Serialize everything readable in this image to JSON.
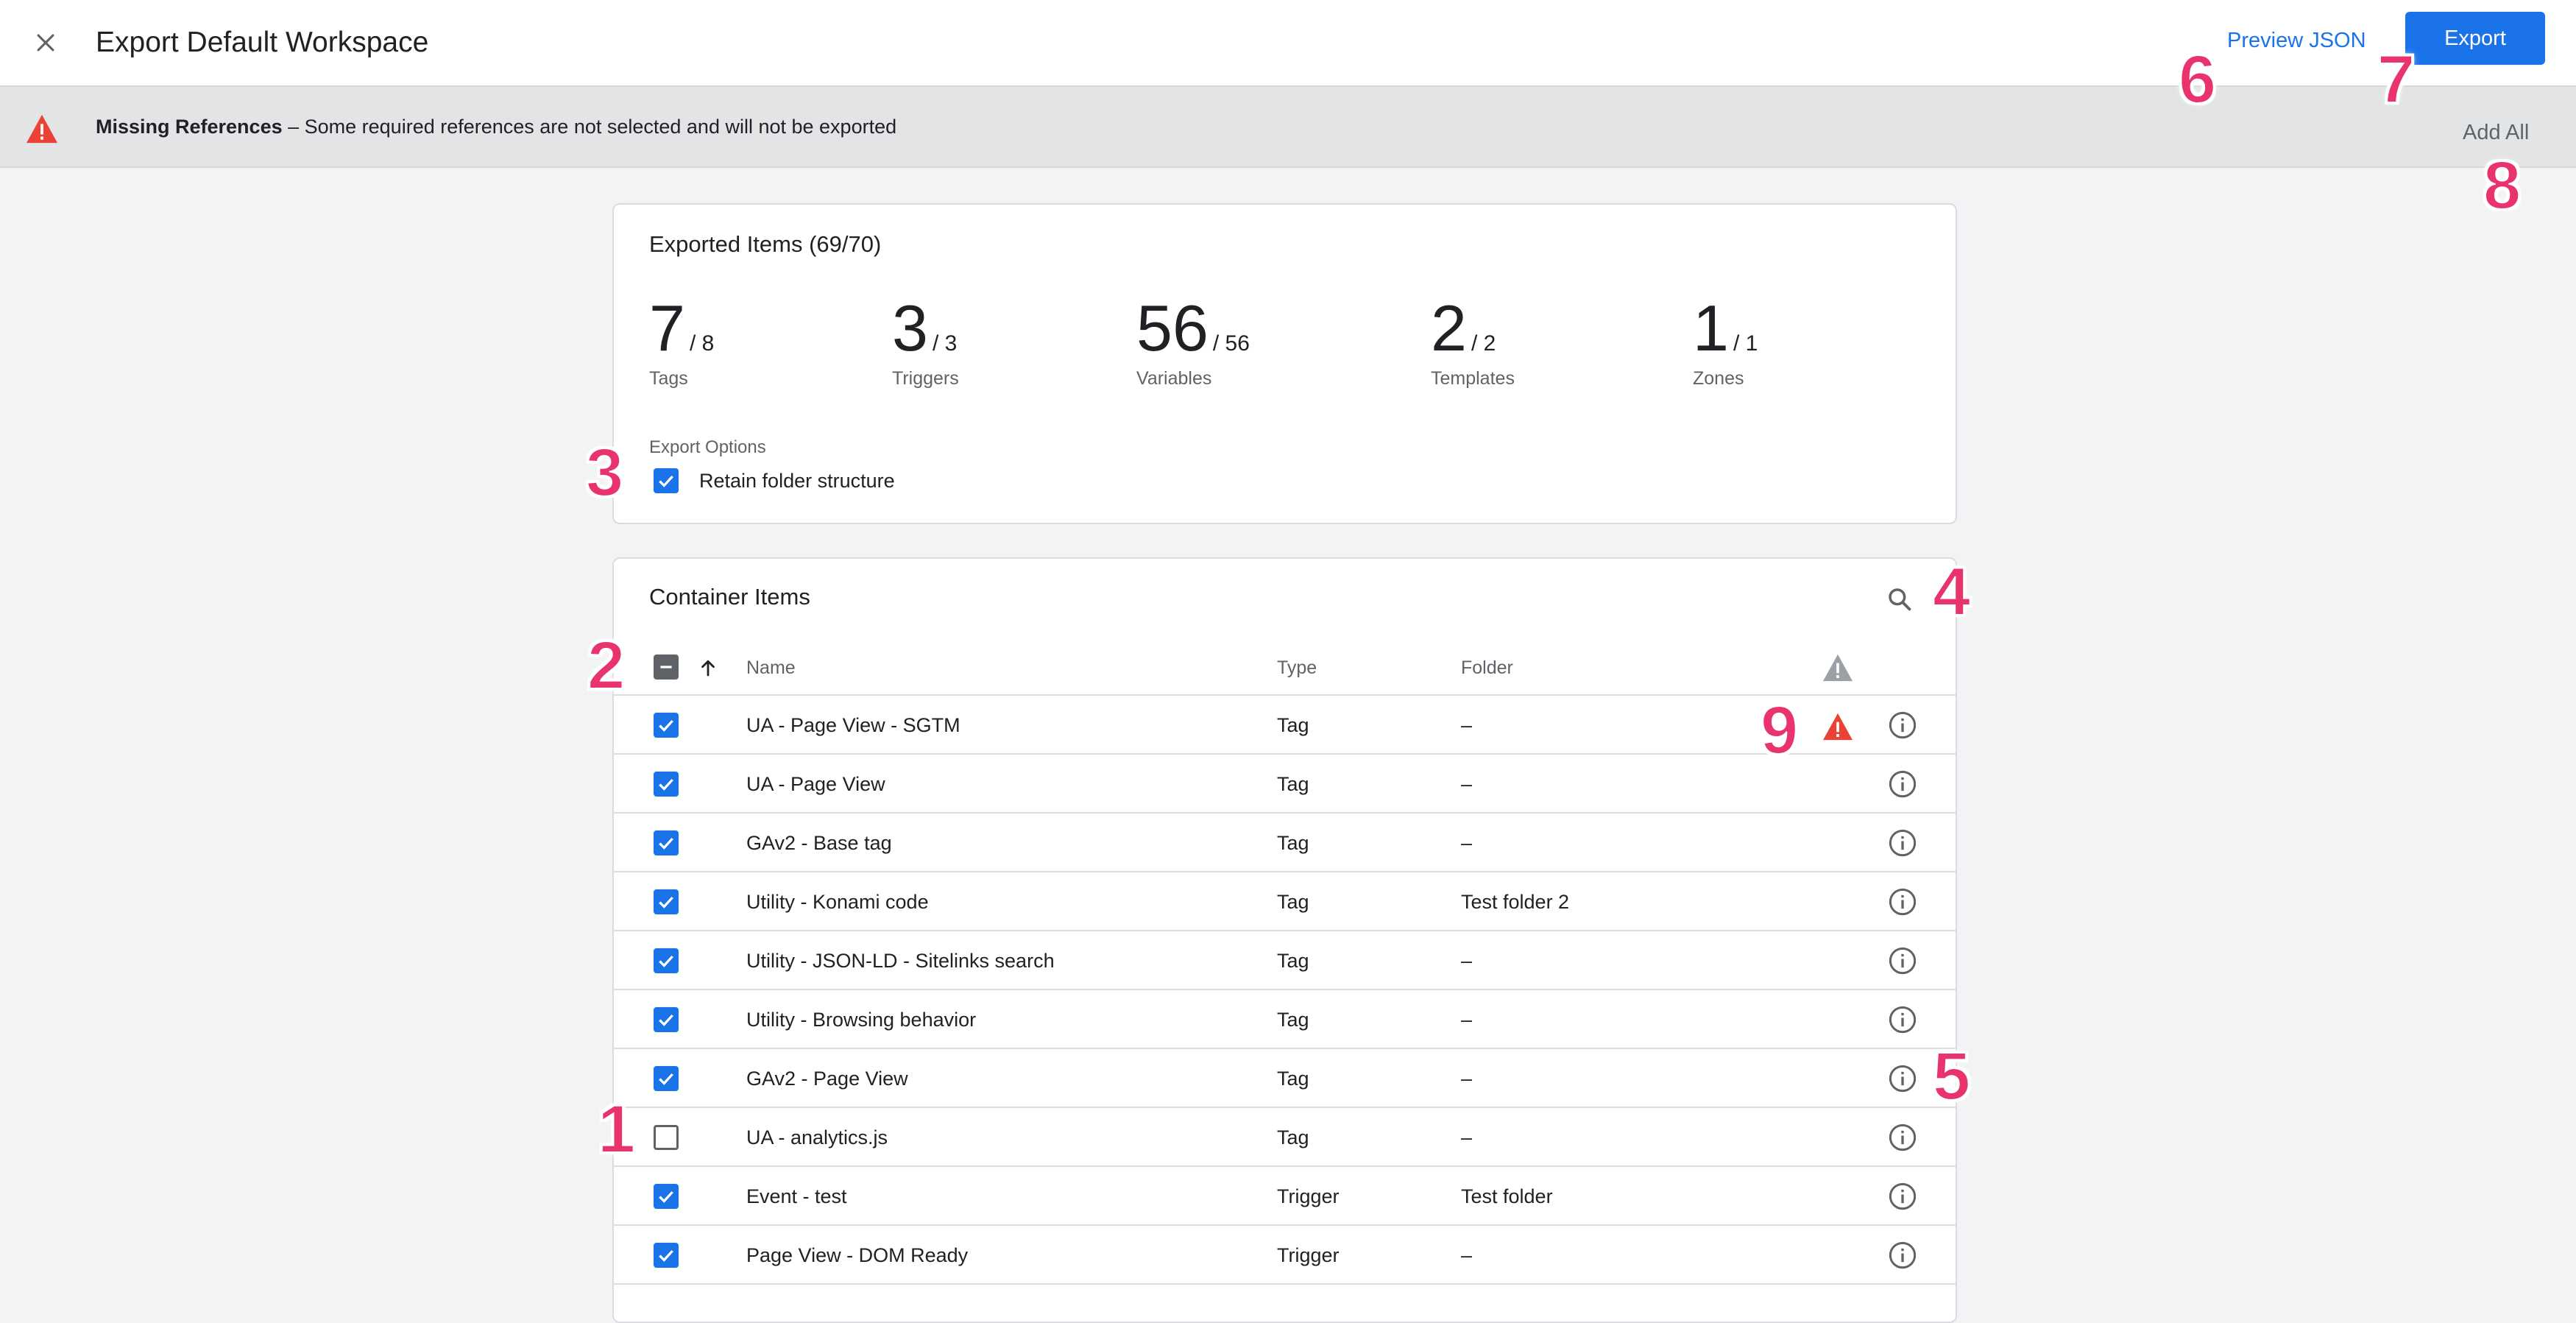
{
  "header": {
    "title": "Export Default Workspace",
    "close_icon": "close-icon",
    "preview_json_label": "Preview JSON",
    "export_label": "Export",
    "accent_color": "#1a73e8"
  },
  "banner": {
    "icon": "warning-icon",
    "heading": "Missing References",
    "message": " – Some required references are not selected and will not be exported",
    "add_all_label": "Add All",
    "warning_color": "#ea4335"
  },
  "summary": {
    "title": "Exported Items (69/70)",
    "stats": [
      {
        "count": "7",
        "total": "/ 8",
        "label": "Tags"
      },
      {
        "count": "3",
        "total": "/ 3",
        "label": "Triggers"
      },
      {
        "count": "56",
        "total": "/ 56",
        "label": "Variables"
      },
      {
        "count": "2",
        "total": "/ 2",
        "label": "Templates"
      },
      {
        "count": "1",
        "total": "/ 1",
        "label": "Zones"
      }
    ],
    "options_label": "Export Options",
    "retain_folder_label": "Retain folder structure",
    "retain_folder_checked": true
  },
  "items": {
    "title": "Container Items",
    "search_icon": "search-icon",
    "columns": {
      "name": "Name",
      "type": "Type",
      "folder": "Folder"
    },
    "rows": [
      {
        "name": "UA - Page View - SGTM",
        "type": "Tag",
        "folder": "–",
        "checked": true,
        "warning": true
      },
      {
        "name": "UA - Page View",
        "type": "Tag",
        "folder": "–",
        "checked": true,
        "warning": false
      },
      {
        "name": "GAv2 - Base tag",
        "type": "Tag",
        "folder": "–",
        "checked": true,
        "warning": false
      },
      {
        "name": "Utility - Konami code",
        "type": "Tag",
        "folder": "Test folder 2",
        "checked": true,
        "warning": false
      },
      {
        "name": "Utility - JSON-LD - Sitelinks search",
        "type": "Tag",
        "folder": "–",
        "checked": true,
        "warning": false
      },
      {
        "name": "Utility - Browsing behavior",
        "type": "Tag",
        "folder": "–",
        "checked": true,
        "warning": false
      },
      {
        "name": "GAv2 - Page View",
        "type": "Tag",
        "folder": "–",
        "checked": true,
        "warning": false
      },
      {
        "name": "UA - analytics.js",
        "type": "Tag",
        "folder": "–",
        "checked": false,
        "warning": false
      },
      {
        "name": "Event - test",
        "type": "Trigger",
        "folder": "Test folder",
        "checked": true,
        "warning": false
      },
      {
        "name": "Page View - DOM Ready",
        "type": "Trigger",
        "folder": "–",
        "checked": true,
        "warning": false
      }
    ]
  },
  "callouts": [
    "1",
    "2",
    "3",
    "4",
    "5",
    "6",
    "7",
    "8",
    "9"
  ]
}
